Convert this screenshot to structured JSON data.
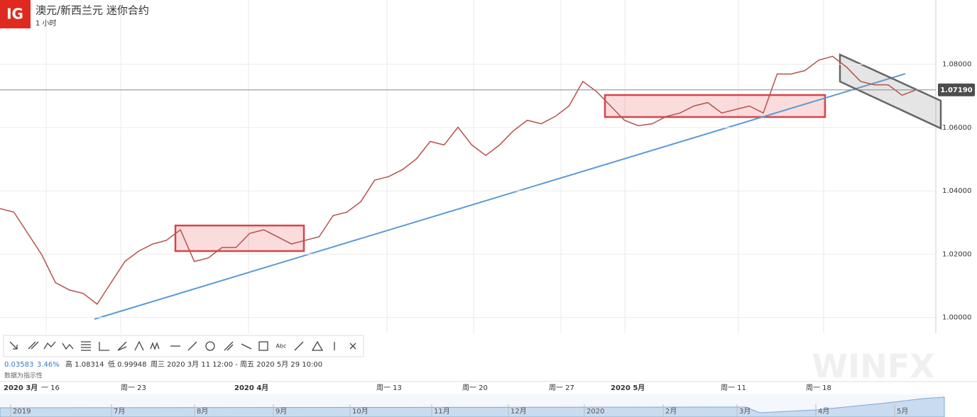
{
  "chart_data": {
    "type": "line",
    "title": "澳元/新西兰元 迷你合约",
    "subtitle": "1 小时",
    "logo": "IG",
    "ylim": [
      0.995,
      1.1003
    ],
    "yticks": [
      {
        "value": 1.0,
        "label": "1.00000"
      },
      {
        "value": 1.02,
        "label": "1.02000"
      },
      {
        "value": 1.04,
        "label": "1.04000"
      },
      {
        "value": 1.06,
        "label": "1.06000"
      },
      {
        "value": 1.08,
        "label": "1.08000"
      }
    ],
    "grid": true,
    "last_price": {
      "value": 1.0719,
      "label": "1.07190"
    },
    "series": [
      {
        "name": "澳元/新西兰元",
        "color": "#b5524a",
        "values": [
          1.0344,
          1.0333,
          1.0266,
          1.0199,
          1.011,
          1.0087,
          1.0076,
          1.0042,
          1.011,
          1.0177,
          1.021,
          1.0232,
          1.0244,
          1.0277,
          1.0177,
          1.0188,
          1.0221,
          1.0221,
          1.0266,
          1.0277,
          1.0255,
          1.0232,
          1.0244,
          1.0255,
          1.0322,
          1.0333,
          1.0366,
          1.0434,
          1.0445,
          1.0467,
          1.0501,
          1.0556,
          1.0545,
          1.0601,
          1.0545,
          1.0512,
          1.0545,
          1.059,
          1.0623,
          1.0612,
          1.0635,
          1.0668,
          1.0746,
          1.0713,
          1.0668,
          1.0623,
          1.0606,
          1.0612,
          1.0635,
          1.0646,
          1.0668,
          1.0679,
          1.0646,
          1.0657,
          1.0668,
          1.0646,
          1.0769,
          1.0769,
          1.078,
          1.0813,
          1.0825,
          1.0791,
          1.0746,
          1.0735,
          1.0735,
          1.0702,
          1.0719
        ]
      }
    ],
    "info": {
      "change": "0.03583",
      "change_pct": "3.46%",
      "high": "高 1.08314",
      "low": "低 0.99948",
      "range": "周三 2020 3月 11 12:00 - 周五 2020 5月 29 10:00",
      "note": "数据为指示性"
    },
    "time_labels": [
      "2020 3月",
      "一 16",
      "周一 23",
      "2020 4月",
      "周一 13",
      "周一 20",
      "周一 27",
      "2020 5月",
      "周一 11",
      "周一 18"
    ],
    "navigator_labels": [
      "2019",
      "7月",
      "8月",
      "9月",
      "10月",
      "11月",
      "12月",
      "2020",
      "2月",
      "3月",
      "4月",
      "5月"
    ],
    "watermark": "WINFX"
  }
}
